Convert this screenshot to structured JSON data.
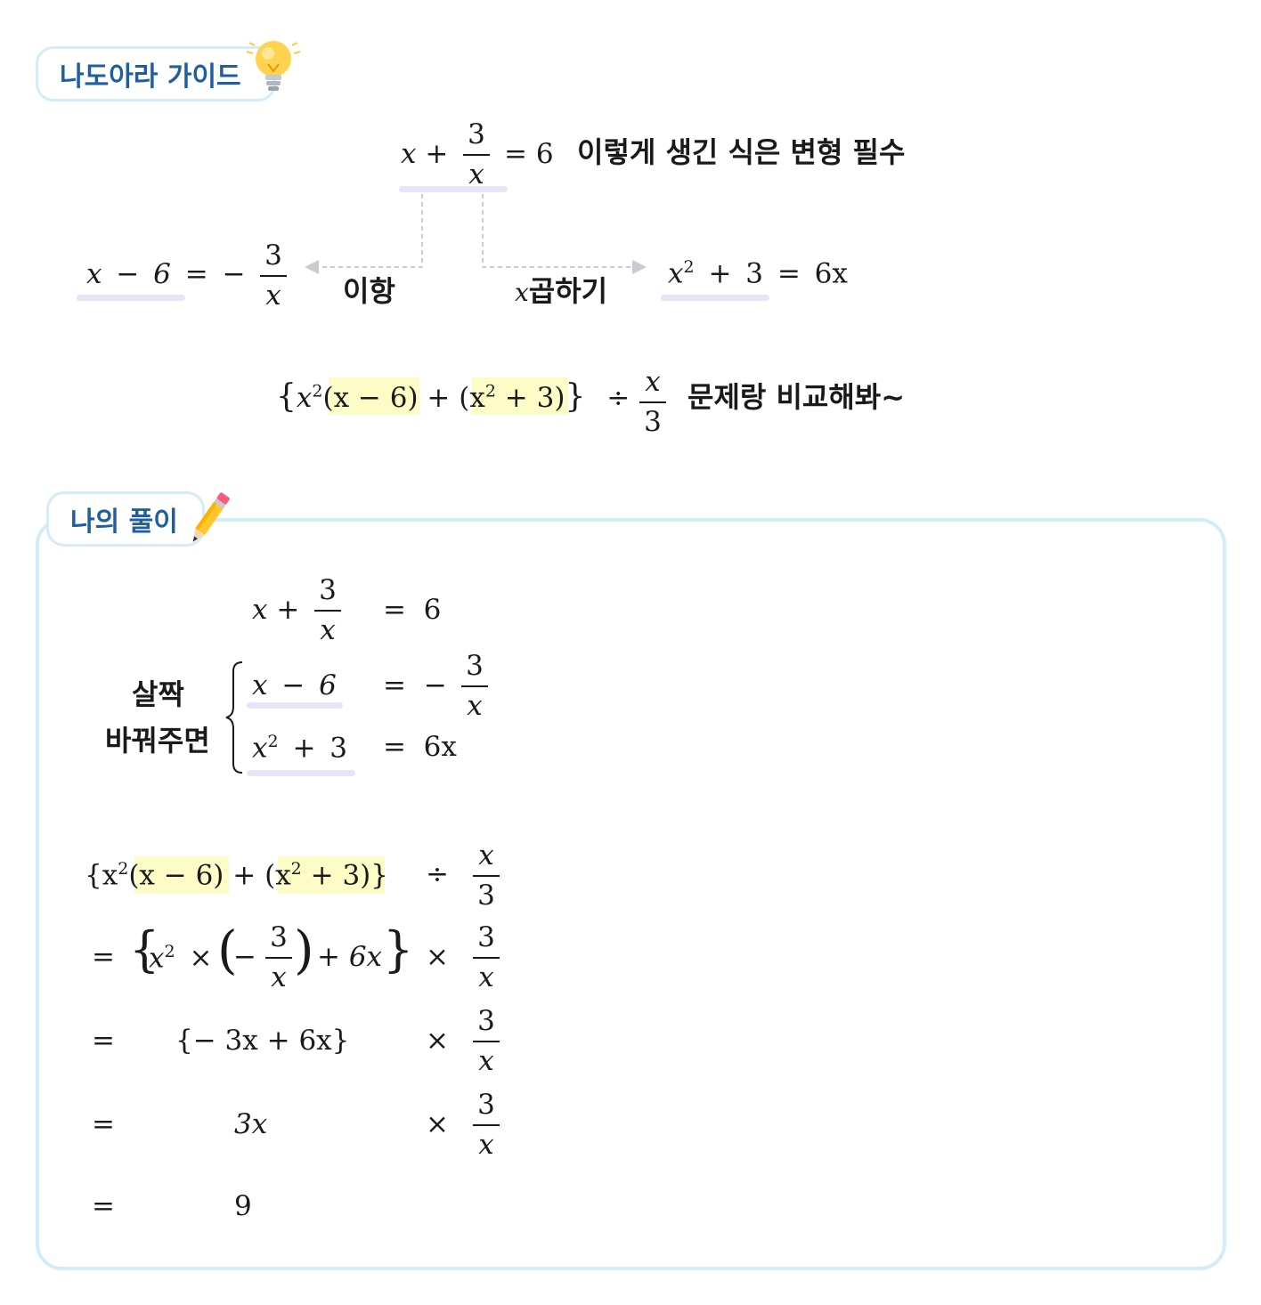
{
  "guide": {
    "title": "나도아라 가이드",
    "equation_left": "x + ",
    "equation_frac_num": "3",
    "equation_frac_den": "x",
    "equation_right": "= 6",
    "note": "이렇게 생긴 식은 변형 필수",
    "left_branch": {
      "label": "이항",
      "expr_left": "x − 6 = −",
      "frac_num": "3",
      "frac_den": "x"
    },
    "right_branch": {
      "label_var": "x",
      "label": "곱하기",
      "expr": "x",
      "expr_sup": "2",
      "expr_rest": "+ 3 = 6x"
    },
    "combo": {
      "open": "{",
      "x2": "x",
      "sup": "2",
      "part1": "(x − 6)",
      "plus": "+",
      "part2_x": "(x",
      "part2_sup": "2",
      "part2_rest": "+ 3)",
      "close": "}",
      "div": "÷",
      "frac_num": "x",
      "frac_den": "3",
      "note": "문제랑 비교해봐~"
    }
  },
  "solution": {
    "title": "나의 풀이",
    "hint_line1": "살짝",
    "hint_line2": "바꿔주면",
    "line1_left": "x + ",
    "line1_frac_num": "3",
    "line1_frac_den": "x",
    "line1_right": "=  6",
    "line2_left": "x − 6",
    "line2_right": "= −",
    "line2_frac_num": "3",
    "line2_frac_den": "x",
    "line3_x": "x",
    "line3_sup": "2",
    "line3_rest": "+ 3",
    "line3_right": "=  6x",
    "step1": {
      "open": "{x",
      "sup": "2",
      "part1": "(x − 6)",
      "plus": "+",
      "part2_x": "(x",
      "part2_sup": "2",
      "part2_rest": "+ 3)}",
      "op": "÷",
      "frac_num": "x",
      "frac_den": "3"
    },
    "step2": {
      "eq": "=",
      "open": "{",
      "x": "x",
      "sup": "2",
      "times": "×",
      "paren_open": "(",
      "minus": "−",
      "frac_num": "3",
      "frac_den": "x",
      "paren_close": ")",
      "rest": "+ 6x",
      "close": "}",
      "op": "×",
      "frac2_num": "3",
      "frac2_den": "x"
    },
    "step3": {
      "eq": "=",
      "expr": "{− 3x + 6x}",
      "op": "×",
      "frac_num": "3",
      "frac_den": "x"
    },
    "step4": {
      "eq": "=",
      "expr": "3x",
      "op": "×",
      "frac_num": "3",
      "frac_den": "x"
    },
    "step5": {
      "eq": "=",
      "expr": "9"
    }
  },
  "colors": {
    "badge_border": "#d3ecfa",
    "badge_text": "#1f5f9f",
    "highlight": "#fdfbc6",
    "underline": "#e4e6f8"
  }
}
